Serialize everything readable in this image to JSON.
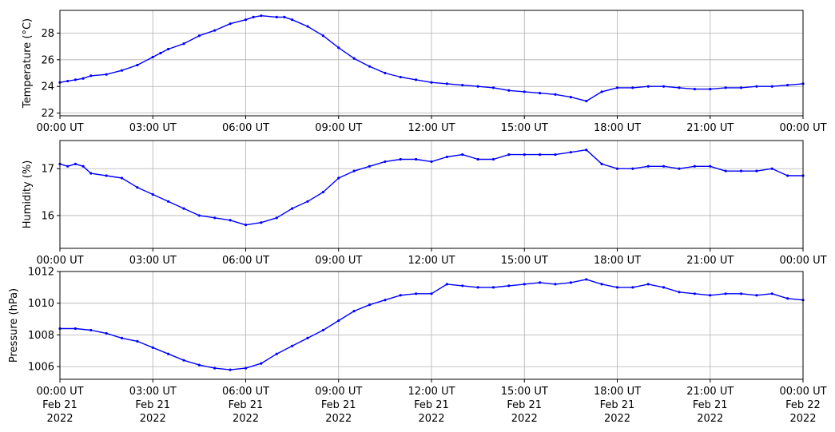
{
  "chart_data": [
    {
      "type": "line",
      "ylabel": "Temperature (°C)",
      "ylim": [
        21.8,
        29.7
      ],
      "yticks": [
        22,
        24,
        26,
        28
      ],
      "xlim": [
        0,
        24
      ],
      "xticks": [
        0,
        3,
        6,
        9,
        12,
        15,
        18,
        21,
        24
      ],
      "xtick_labels": [
        "00:00 UT",
        "03:00 UT",
        "06:00 UT",
        "09:00 UT",
        "12:00 UT",
        "15:00 UT",
        "18:00 UT",
        "21:00 UT",
        "00:00 UT"
      ],
      "grid": true,
      "color": "#0000ff",
      "series": [
        {
          "x": [
            0,
            0.25,
            0.5,
            0.75,
            1,
            1.5,
            2,
            2.5,
            3,
            3.25,
            3.5,
            4,
            4.5,
            5,
            5.5,
            6,
            6.25,
            6.5,
            7,
            7.25,
            7.5,
            8,
            8.5,
            9,
            9.5,
            10,
            10.5,
            11,
            11.5,
            12,
            12.5,
            13,
            13.5,
            14,
            14.5,
            15,
            15.5,
            16,
            16.5,
            17,
            17.5,
            18,
            18.5,
            19,
            19.5,
            20,
            20.5,
            21,
            21.5,
            22,
            22.5,
            23,
            23.5,
            24
          ],
          "y": [
            24.3,
            24.4,
            24.5,
            24.6,
            24.8,
            24.9,
            25.2,
            25.6,
            26.2,
            26.5,
            26.8,
            27.2,
            27.8,
            28.2,
            28.7,
            29.0,
            29.2,
            29.3,
            29.2,
            29.2,
            29.0,
            28.5,
            27.8,
            26.9,
            26.1,
            25.5,
            25.0,
            24.7,
            24.5,
            24.3,
            24.2,
            24.1,
            24.0,
            23.9,
            23.7,
            23.6,
            23.5,
            23.4,
            23.2,
            22.9,
            23.6,
            23.9,
            23.9,
            24.0,
            24.0,
            23.9,
            23.8,
            23.8,
            23.9,
            23.9,
            24.0,
            24.0,
            24.1,
            24.2
          ]
        }
      ]
    },
    {
      "type": "line",
      "ylabel": "Humidity (%)",
      "ylim": [
        15.3,
        17.6
      ],
      "yticks": [
        16,
        17
      ],
      "xlim": [
        0,
        24
      ],
      "xticks": [
        0,
        3,
        6,
        9,
        12,
        15,
        18,
        21,
        24
      ],
      "xtick_labels": [
        "00:00 UT",
        "03:00 UT",
        "06:00 UT",
        "09:00 UT",
        "12:00 UT",
        "15:00 UT",
        "18:00 UT",
        "21:00 UT",
        "00:00 UT"
      ],
      "grid": true,
      "color": "#0000ff",
      "series": [
        {
          "x": [
            0,
            0.25,
            0.5,
            0.75,
            1,
            1.5,
            2,
            2.5,
            3,
            3.5,
            4,
            4.5,
            5,
            5.5,
            6,
            6.5,
            7,
            7.5,
            8,
            8.5,
            9,
            9.5,
            10,
            10.5,
            11,
            11.5,
            12,
            12.5,
            13,
            13.5,
            14,
            14.5,
            15,
            15.5,
            16,
            16.5,
            17,
            17.5,
            18,
            18.5,
            19,
            19.5,
            20,
            20.5,
            21,
            21.5,
            22,
            22.5,
            23,
            23.5,
            24
          ],
          "y": [
            17.1,
            17.05,
            17.1,
            17.05,
            16.9,
            16.85,
            16.8,
            16.6,
            16.45,
            16.3,
            16.15,
            16.0,
            15.95,
            15.9,
            15.8,
            15.85,
            15.95,
            16.15,
            16.3,
            16.5,
            16.8,
            16.95,
            17.05,
            17.15,
            17.2,
            17.2,
            17.15,
            17.25,
            17.3,
            17.2,
            17.2,
            17.3,
            17.3,
            17.3,
            17.3,
            17.35,
            17.4,
            17.1,
            17.0,
            17.0,
            17.05,
            17.05,
            17.0,
            17.05,
            17.05,
            16.95,
            16.95,
            16.95,
            17.0,
            16.85,
            16.85
          ]
        }
      ]
    },
    {
      "type": "line",
      "ylabel": "Pressure (hPa)",
      "ylim": [
        1005.2,
        1012.0
      ],
      "yticks": [
        1006,
        1008,
        1010,
        1012
      ],
      "xlim": [
        0,
        24
      ],
      "xticks": [
        0,
        3,
        6,
        9,
        12,
        15,
        18,
        21,
        24
      ],
      "xtick_labels": [
        "00:00 UT",
        "03:00 UT",
        "06:00 UT",
        "09:00 UT",
        "12:00 UT",
        "15:00 UT",
        "18:00 UT",
        "21:00 UT",
        "00:00 UT"
      ],
      "xtick_labels_line2": [
        "Feb 21",
        "Feb 21",
        "Feb 21",
        "Feb 21",
        "Feb 21",
        "Feb 21",
        "Feb 21",
        "Feb 21",
        "Feb 22"
      ],
      "xtick_labels_line3": [
        "2022",
        "2022",
        "2022",
        "2022",
        "2022",
        "2022",
        "2022",
        "2022",
        "2022"
      ],
      "grid": true,
      "color": "#0000ff",
      "series": [
        {
          "x": [
            0,
            0.5,
            1,
            1.5,
            2,
            2.5,
            3,
            3.5,
            4,
            4.5,
            5,
            5.5,
            6,
            6.5,
            7,
            7.5,
            8,
            8.5,
            9,
            9.5,
            10,
            10.5,
            11,
            11.5,
            12,
            12.5,
            13,
            13.5,
            14,
            14.5,
            15,
            15.5,
            16,
            16.5,
            17,
            17.5,
            18,
            18.5,
            19,
            19.5,
            20,
            20.5,
            21,
            21.5,
            22,
            22.5,
            23,
            23.5,
            24
          ],
          "y": [
            1008.4,
            1008.4,
            1008.3,
            1008.1,
            1007.8,
            1007.6,
            1007.2,
            1006.8,
            1006.4,
            1006.1,
            1005.9,
            1005.8,
            1005.9,
            1006.2,
            1006.8,
            1007.3,
            1007.8,
            1008.3,
            1008.9,
            1009.5,
            1009.9,
            1010.2,
            1010.5,
            1010.6,
            1010.6,
            1011.2,
            1011.1,
            1011.0,
            1011.0,
            1011.1,
            1011.2,
            1011.3,
            1011.2,
            1011.3,
            1011.5,
            1011.2,
            1011.0,
            1011.0,
            1011.2,
            1011.0,
            1010.7,
            1010.6,
            1010.5,
            1010.6,
            1010.6,
            1010.5,
            1010.6,
            1010.3,
            1010.2
          ]
        }
      ]
    }
  ]
}
